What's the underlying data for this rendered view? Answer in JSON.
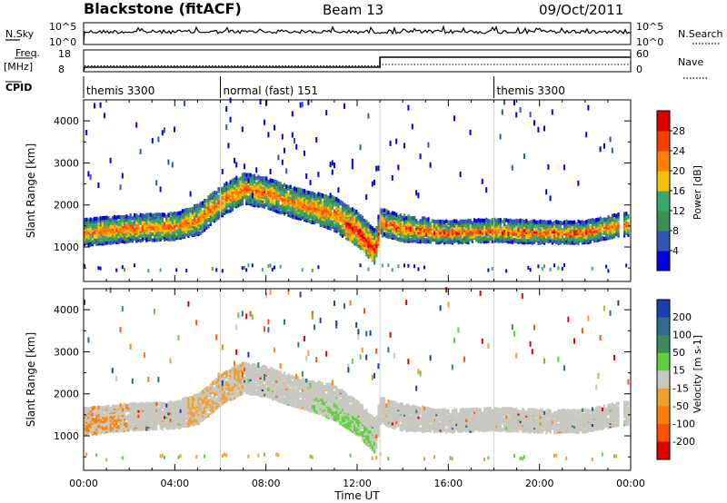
{
  "header": {
    "radar": "Blackstone (fitACF)",
    "beam": "Beam 13",
    "date": "09/Oct/2011"
  },
  "status_panels": {
    "noise_label_left": "N.Sky",
    "noise_label_right": "N.Search",
    "noise_ticks_left": [
      "10^5",
      "10^0"
    ],
    "noise_ticks_right": [
      "10^5",
      "10^0"
    ],
    "freq_label_line1": "Freq.",
    "freq_label_line2": "[MHz]",
    "freq_ticks": [
      "18",
      "8"
    ],
    "nave_label": "Nave",
    "nave_ticks": [
      "60",
      "0"
    ],
    "cpid_label": "CPID",
    "cpid_segments": [
      {
        "label": "themis 3300",
        "start_hour": 0,
        "end_hour": 6
      },
      {
        "label": "normal (fast) 151",
        "start_hour": 6,
        "end_hour": 18
      },
      {
        "label": "themis 3300",
        "start_hour": 18,
        "end_hour": 24
      }
    ]
  },
  "chart_data": [
    {
      "type": "heatmap",
      "name": "Power panel",
      "ylabel": "Slant Range [km]",
      "xlabel": "Time UT",
      "x_ticks": [
        "00:00",
        "04:00",
        "08:00",
        "12:00",
        "16:00",
        "20:00",
        "00:00"
      ],
      "xlim_hours": [
        0,
        24
      ],
      "y_ticks": [
        1000,
        2000,
        3000,
        4000
      ],
      "ylim": [
        180,
        4500
      ],
      "colorbar": {
        "label": "Power [dB]",
        "ticks": [
          4,
          8,
          12,
          16,
          20,
          24,
          28
        ],
        "colors": [
          "#0000e0",
          "#2f57b8",
          "#3d8f4f",
          "#39a86a",
          "#f7c000",
          "#ff8000",
          "#ff4000",
          "#e00000"
        ]
      },
      "echo_band": {
        "hours": [
          0,
          2,
          4,
          5,
          6,
          7,
          8,
          9,
          10,
          11,
          12,
          12.8,
          13,
          14,
          16,
          18,
          20,
          22,
          23.3,
          24
        ],
        "center_km": [
          1350,
          1450,
          1500,
          1650,
          2100,
          2400,
          2300,
          2100,
          1950,
          1800,
          1450,
          1000,
          1600,
          1450,
          1350,
          1400,
          1350,
          1350,
          1500,
          1550
        ],
        "thickness_km": [
          300,
          300,
          300,
          350,
          350,
          350,
          350,
          350,
          350,
          400,
          400,
          400,
          300,
          300,
          250,
          250,
          250,
          250,
          250,
          250
        ]
      }
    },
    {
      "type": "heatmap",
      "name": "Velocity panel",
      "ylabel": "Slant Range [km]",
      "xlabel": "Time UT",
      "x_ticks": [
        "00:00",
        "04:00",
        "08:00",
        "12:00",
        "16:00",
        "20:00",
        "00:00"
      ],
      "xlim_hours": [
        0,
        24
      ],
      "y_ticks": [
        1000,
        2000,
        3000,
        4000
      ],
      "ylim": [
        180,
        4500
      ],
      "colorbar": {
        "label": "Velocity [m s-1]",
        "ticks": [
          200,
          100,
          50,
          15,
          -15,
          -50,
          -100,
          -200
        ],
        "colors": [
          "#1a3fb0",
          "#2f6a8f",
          "#3c8a5c",
          "#5fd040",
          "#c8c8c0",
          "#f0a030",
          "#ff8000",
          "#ff5000",
          "#e00000"
        ]
      }
    }
  ],
  "x_axis_label": "Time UT",
  "colors": {
    "frame": "#000000",
    "divider": "#c8c8c8",
    "velocity_gray": "#c8c8c0"
  }
}
